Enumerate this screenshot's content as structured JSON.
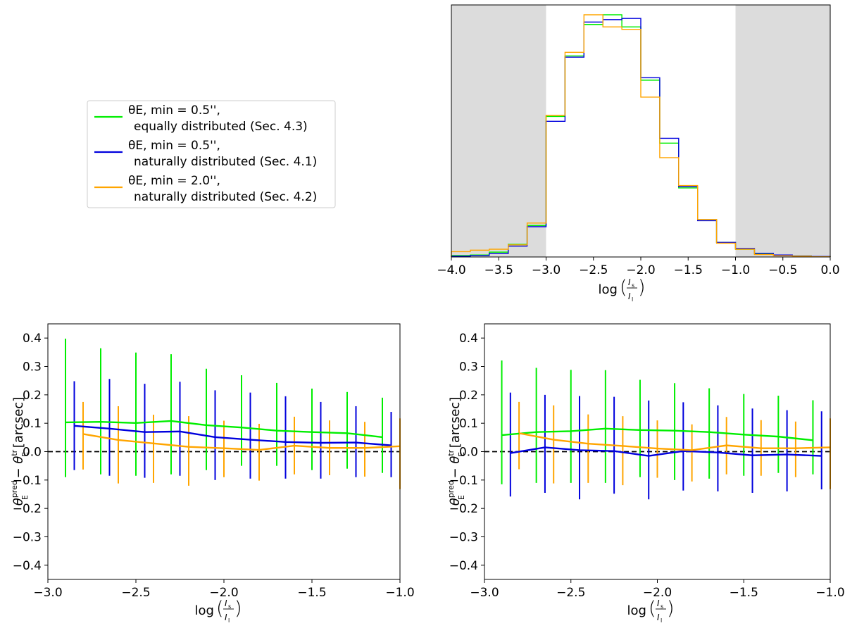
{
  "colors": {
    "green": "#00ee00",
    "blue": "#0000dd",
    "orange": "#ffa500",
    "shade": "#dcdcdc"
  },
  "legend": {
    "location": "upper-left",
    "entries": [
      {
        "line1": "θE, min = 0.5'',",
        "line2": "equally distributed (Sec. 4.3)",
        "color": "#00ee00"
      },
      {
        "line1": "θE, min = 0.5'',",
        "line2": "naturally distributed (Sec. 4.1)",
        "color": "#0000dd"
      },
      {
        "line1": "θE, min = 2.0'',",
        "line2": "naturally distributed (Sec. 4.2)",
        "color": "#ffa500"
      }
    ]
  },
  "xlabel": {
    "prefix": "log",
    "num": "I",
    "num_sub": "s",
    "den": "I",
    "den_sub": "l"
  },
  "ylabel": {
    "theta": "θ",
    "sub": "E",
    "sup_pred": "pred",
    "minus": " − ",
    "sup_tr": "tr",
    "unit": " [arcsec]"
  },
  "chart_data": [
    {
      "type": "histogram",
      "name": "top-histogram",
      "xlim": [
        -4.0,
        0.0
      ],
      "ylim": [
        0,
        1
      ],
      "y_ticks_visible": false,
      "shaded_regions": [
        [
          -4.0,
          -3.0
        ],
        [
          -1.0,
          0.0
        ]
      ],
      "bin_edges": [
        -4.0,
        -3.8,
        -3.6,
        -3.4,
        -3.2,
        -3.0,
        -2.8,
        -2.6,
        -2.4,
        -2.2,
        -2.0,
        -1.8,
        -1.6,
        -1.4,
        -1.2,
        -1.0,
        -0.8,
        -0.6,
        -0.4,
        -0.2,
        0.0
      ],
      "xticks": [
        -4.0,
        -3.5,
        -3.0,
        -2.5,
        -2.0,
        -1.5,
        -1.0,
        -0.5,
        0.0
      ],
      "xtick_labels": [
        "−4.0",
        "−3.5",
        "−3.0",
        "−2.5",
        "−2.0",
        "−1.5",
        "−1.0",
        "−0.5",
        "0.0"
      ],
      "series": [
        {
          "name": "θE,min = 0.5'', equally distributed (Sec. 4.3)",
          "color": "#00ee00",
          "values": [
            0.006,
            0.008,
            0.02,
            0.052,
            0.13,
            0.58,
            0.83,
            0.96,
            1.0,
            0.95,
            0.73,
            0.47,
            0.285,
            0.155,
            0.06,
            0.032,
            0.012,
            0.007,
            0.004,
            0.001
          ]
        },
        {
          "name": "θE,min = 0.5'', naturally distributed (Sec. 4.1)",
          "color": "#0000dd",
          "values": [
            0.003,
            0.006,
            0.014,
            0.045,
            0.125,
            0.56,
            0.825,
            0.97,
            0.98,
            0.985,
            0.74,
            0.49,
            0.29,
            0.15,
            0.06,
            0.035,
            0.015,
            0.008,
            0.004,
            0.002
          ]
        },
        {
          "name": "θE,min = 2.0'', naturally distributed (Sec. 4.2)",
          "color": "#ffa500",
          "values": [
            0.022,
            0.028,
            0.032,
            0.05,
            0.14,
            0.585,
            0.845,
            1.0,
            0.95,
            0.94,
            0.66,
            0.41,
            0.295,
            0.155,
            0.057,
            0.032,
            0.01,
            0.005,
            0.003,
            0.001
          ]
        }
      ]
    },
    {
      "type": "line-errorbar",
      "name": "bottom-left",
      "xlim": [
        -3.0,
        -1.0
      ],
      "ylim": [
        -0.45,
        0.45
      ],
      "xticks": [
        -3.0,
        -2.5,
        -2.0,
        -1.5,
        -1.0
      ],
      "xtick_labels": [
        "−3.0",
        "−2.5",
        "−2.0",
        "−1.5",
        "−1.0"
      ],
      "yticks": [
        -0.4,
        -0.3,
        -0.2,
        -0.1,
        0.0,
        0.1,
        0.2,
        0.3,
        0.4
      ],
      "ytick_labels": [
        "−0.4",
        "−0.3",
        "−0.2",
        "−0.1",
        "0.0",
        "0.1",
        "0.2",
        "0.3",
        "0.4"
      ],
      "reference_line": 0.0,
      "series": [
        {
          "name": "green",
          "color": "#00ee00",
          "x": [
            -2.9,
            -2.7,
            -2.5,
            -2.3,
            -2.1,
            -1.9,
            -1.7,
            -1.5,
            -1.3,
            -1.1
          ],
          "y": [
            0.103,
            0.105,
            0.101,
            0.108,
            0.093,
            0.085,
            0.074,
            0.069,
            0.065,
            0.051
          ],
          "low": [
            -0.09,
            -0.08,
            -0.085,
            -0.08,
            -0.065,
            -0.05,
            -0.05,
            -0.065,
            -0.06,
            -0.075
          ],
          "high": [
            0.398,
            0.364,
            0.349,
            0.343,
            0.292,
            0.269,
            0.242,
            0.222,
            0.21,
            0.19
          ]
        },
        {
          "name": "blue",
          "color": "#0000dd",
          "x": [
            -2.85,
            -2.65,
            -2.45,
            -2.25,
            -2.05,
            -1.85,
            -1.65,
            -1.45,
            -1.25,
            -1.05
          ],
          "y": [
            0.091,
            0.081,
            0.069,
            0.071,
            0.051,
            0.042,
            0.034,
            0.031,
            0.032,
            0.022
          ],
          "low": [
            -0.065,
            -0.085,
            -0.092,
            -0.085,
            -0.1,
            -0.095,
            -0.095,
            -0.095,
            -0.09,
            -0.09
          ],
          "high": [
            0.248,
            0.256,
            0.239,
            0.246,
            0.216,
            0.208,
            0.195,
            0.175,
            0.16,
            0.14
          ]
        },
        {
          "name": "orange",
          "color": "#ffa500",
          "x": [
            -2.8,
            -2.6,
            -2.4,
            -2.2,
            -2.0,
            -1.8,
            -1.6,
            -1.4,
            -1.2,
            -1.0
          ],
          "y": [
            0.062,
            0.041,
            0.029,
            0.017,
            0.012,
            0.006,
            0.021,
            0.013,
            0.013,
            0.019
          ],
          "low": [
            -0.063,
            -0.112,
            -0.11,
            -0.12,
            -0.09,
            -0.102,
            -0.08,
            -0.083,
            -0.088,
            -0.132
          ],
          "high": [
            0.175,
            0.16,
            0.13,
            0.125,
            0.109,
            0.098,
            0.123,
            0.11,
            0.105,
            0.117
          ]
        }
      ]
    },
    {
      "type": "line-errorbar",
      "name": "bottom-right",
      "xlim": [
        -3.0,
        -1.0
      ],
      "ylim": [
        -0.45,
        0.45
      ],
      "xticks": [
        -3.0,
        -2.5,
        -2.0,
        -1.5,
        -1.0
      ],
      "xtick_labels": [
        "−3.0",
        "−2.5",
        "−2.0",
        "−1.5",
        "−1.0"
      ],
      "yticks": [
        -0.4,
        -0.3,
        -0.2,
        -0.1,
        0.0,
        0.1,
        0.2,
        0.3,
        0.4
      ],
      "ytick_labels": [
        "−0.4",
        "−0.3",
        "−0.2",
        "−0.1",
        "0.0",
        "0.1",
        "0.2",
        "0.3",
        "0.4"
      ],
      "reference_line": 0.0,
      "series": [
        {
          "name": "green",
          "color": "#00ee00",
          "x": [
            -2.9,
            -2.7,
            -2.5,
            -2.3,
            -2.1,
            -1.9,
            -1.7,
            -1.5,
            -1.3,
            -1.1
          ],
          "y": [
            0.058,
            0.069,
            0.072,
            0.081,
            0.076,
            0.074,
            0.069,
            0.06,
            0.053,
            0.04
          ],
          "low": [
            -0.115,
            -0.11,
            -0.11,
            -0.11,
            -0.09,
            -0.1,
            -0.095,
            -0.085,
            -0.075,
            -0.08
          ],
          "high": [
            0.321,
            0.295,
            0.288,
            0.287,
            0.253,
            0.241,
            0.223,
            0.203,
            0.197,
            0.181
          ]
        },
        {
          "name": "blue",
          "color": "#0000dd",
          "x": [
            -2.85,
            -2.65,
            -2.45,
            -2.25,
            -2.05,
            -1.85,
            -1.65,
            -1.45,
            -1.25,
            -1.05
          ],
          "y": [
            -0.005,
            0.015,
            0.005,
            0.002,
            -0.015,
            0.002,
            -0.003,
            -0.013,
            -0.01,
            -0.015
          ],
          "low": [
            -0.158,
            -0.145,
            -0.168,
            -0.148,
            -0.168,
            -0.137,
            -0.14,
            -0.145,
            -0.14,
            -0.133
          ],
          "high": [
            0.208,
            0.2,
            0.196,
            0.193,
            0.18,
            0.174,
            0.163,
            0.152,
            0.146,
            0.142
          ]
        },
        {
          "name": "orange",
          "color": "#ffa500",
          "x": [
            -2.8,
            -2.6,
            -2.4,
            -2.2,
            -2.0,
            -1.8,
            -1.6,
            -1.4,
            -1.2,
            -1.0
          ],
          "y": [
            0.065,
            0.042,
            0.028,
            0.02,
            0.011,
            0.005,
            0.022,
            0.012,
            0.012,
            0.015
          ],
          "low": [
            -0.062,
            -0.112,
            -0.11,
            -0.118,
            -0.092,
            -0.105,
            -0.08,
            -0.085,
            -0.09,
            -0.132
          ],
          "high": [
            0.175,
            0.163,
            0.131,
            0.125,
            0.11,
            0.096,
            0.122,
            0.111,
            0.106,
            0.117
          ]
        }
      ]
    }
  ]
}
